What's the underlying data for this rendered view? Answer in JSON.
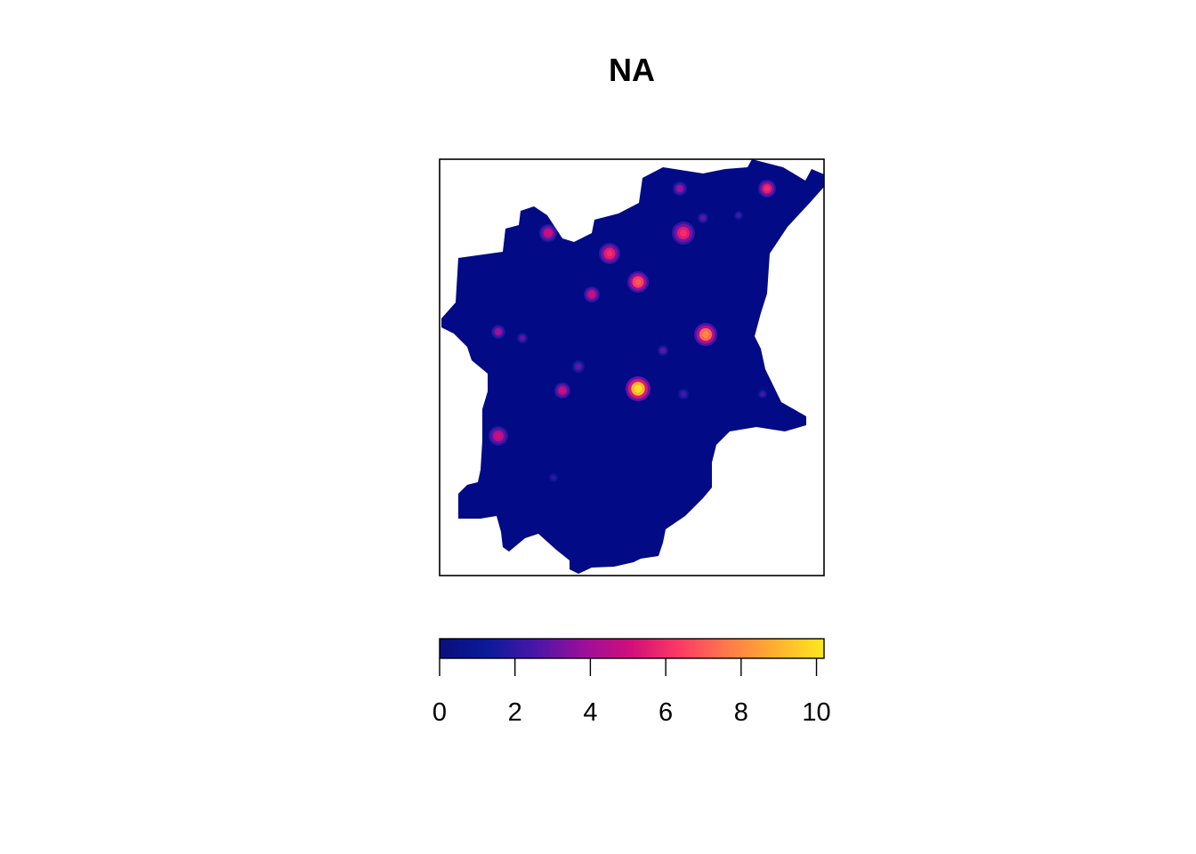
{
  "title": "NA",
  "legend": {
    "ticks": [
      0,
      2,
      4,
      6,
      8,
      10
    ],
    "max": 10.2,
    "palette": [
      "#0a0f7a",
      "#0a1a9a",
      "#4a16a8",
      "#9a0f9a",
      "#d10f7a",
      "#ff3a64",
      "#ff7a4a",
      "#ffb030",
      "#ffe81f"
    ]
  },
  "chart_data": {
    "type": "heatmap",
    "title": "NA",
    "colorbar": {
      "min": 0,
      "max": 10.2,
      "ticks": [
        0,
        2,
        4,
        6,
        8,
        10
      ]
    },
    "region_fill": "#020a85",
    "hotspots": [
      {
        "name": "hotspot",
        "value": 10
      },
      {
        "name": "hotspot",
        "value": 8
      },
      {
        "name": "hotspot",
        "value": 7
      },
      {
        "name": "hotspot",
        "value": 6
      },
      {
        "name": "hotspot",
        "value": 6
      },
      {
        "name": "hotspot",
        "value": 6
      },
      {
        "name": "hotspot",
        "value": 5
      },
      {
        "name": "hotspot",
        "value": 5
      },
      {
        "name": "hotspot",
        "value": 5
      },
      {
        "name": "hotspot",
        "value": 5
      },
      {
        "name": "hotspot",
        "value": 4
      },
      {
        "name": "hotspot",
        "value": 4
      },
      {
        "name": "hotspot",
        "value": 3
      },
      {
        "name": "hotspot",
        "value": 3
      },
      {
        "name": "hotspot",
        "value": 3
      },
      {
        "name": "hotspot",
        "value": 3
      },
      {
        "name": "hotspot",
        "value": 2.5
      },
      {
        "name": "hotspot",
        "value": 2.5
      },
      {
        "name": "hotspot",
        "value": 2.5
      },
      {
        "name": "hotspot",
        "value": 2
      }
    ]
  }
}
